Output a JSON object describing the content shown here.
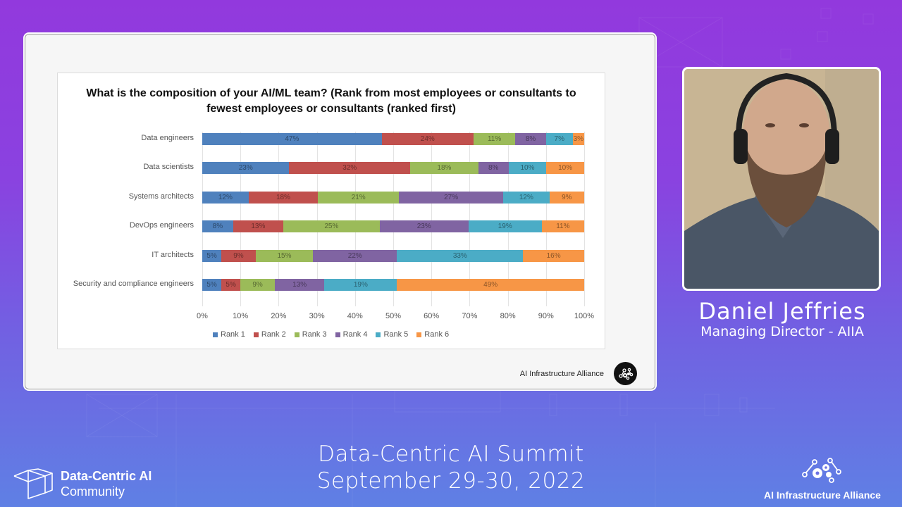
{
  "chart_data": {
    "type": "bar",
    "orientation": "horizontal",
    "stacked": true,
    "percent": true,
    "title": "What is the composition of your AI/ML team? (Rank from most employees or consultants to fewest employees or consultants (ranked first)",
    "xlabel": "",
    "ylabel": "",
    "xlim": [
      0,
      100
    ],
    "grid": true,
    "legend_position": "bottom",
    "categories": [
      "Data engineers",
      "Data scientists",
      "Systems architects",
      "DevOps engineers",
      "IT architects",
      "Security and compliance engineers"
    ],
    "series": [
      {
        "name": "Rank 1",
        "color": "#4f81bd",
        "values": [
          47,
          23,
          12,
          8,
          5,
          5
        ]
      },
      {
        "name": "Rank 2",
        "color": "#c0504d",
        "values": [
          24,
          32,
          18,
          13,
          9,
          5
        ]
      },
      {
        "name": "Rank 3",
        "color": "#9bbb59",
        "values": [
          11,
          18,
          21,
          25,
          15,
          9
        ]
      },
      {
        "name": "Rank 4",
        "color": "#8064a2",
        "values": [
          8,
          8,
          27,
          23,
          22,
          13
        ]
      },
      {
        "name": "Rank 5",
        "color": "#4bacc6",
        "values": [
          7,
          10,
          12,
          19,
          33,
          19
        ]
      },
      {
        "name": "Rank 6",
        "color": "#f79646",
        "values": [
          3,
          10,
          9,
          11,
          16,
          49
        ]
      }
    ],
    "x_ticks": [
      "0%",
      "10%",
      "20%",
      "30%",
      "40%",
      "50%",
      "60%",
      "70%",
      "80%",
      "90%",
      "100%"
    ]
  },
  "slide": {
    "footer_text": "AI Infrastructure Alliance",
    "footer_icon": "aiia-gears-icon"
  },
  "speaker": {
    "name": "Daniel Jeffries",
    "role": "Managing Director - AIIA"
  },
  "event": {
    "title_line1": "Data-Centric AI Summit",
    "title_line2": "September 29-30, 2022"
  },
  "branding": {
    "community_title": "Data-Centric AI",
    "community_sub": "Community",
    "community_icon": "cube-icon",
    "alliance_name": "AI Infrastructure Alliance",
    "alliance_icon": "gears-network-icon"
  },
  "colors": {
    "bg_top": "#9239dd",
    "bg_bottom": "#5f80e4"
  }
}
